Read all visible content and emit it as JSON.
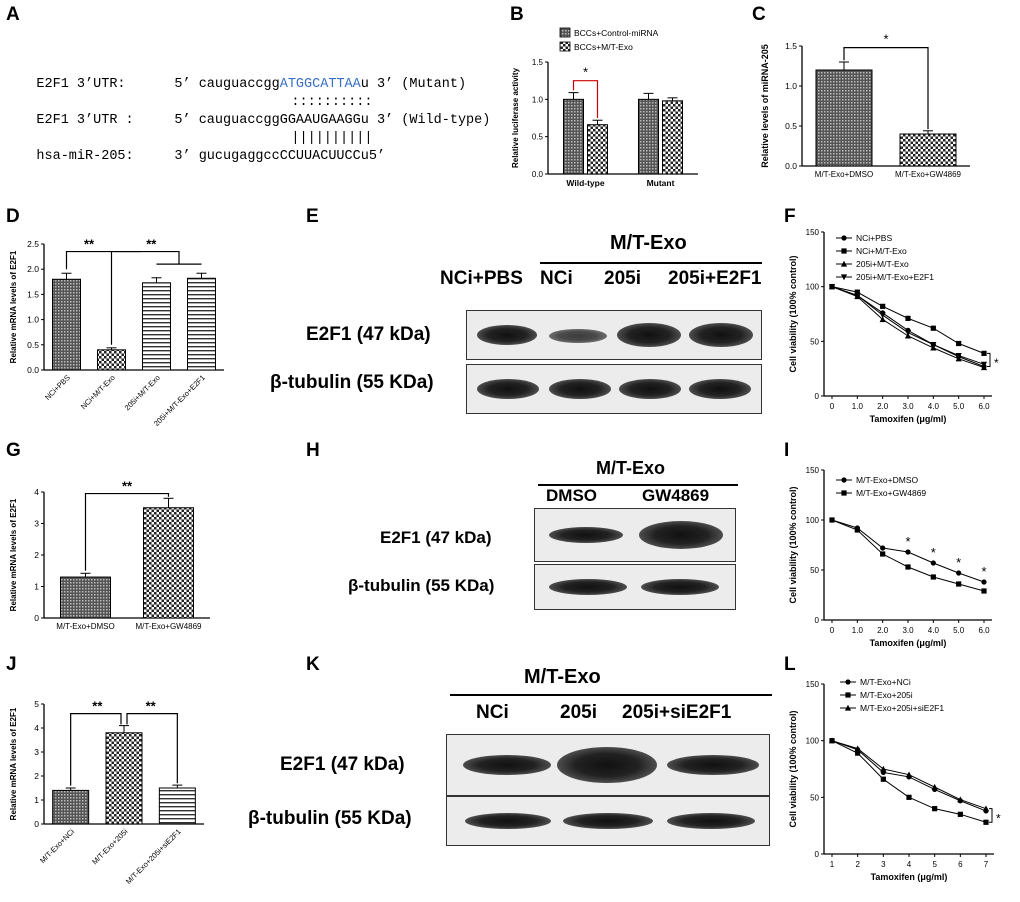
{
  "panel_labels": [
    "A",
    "B",
    "C",
    "D",
    "E",
    "F",
    "G",
    "H",
    "I",
    "J",
    "K",
    "L"
  ],
  "panel_a": {
    "rows": [
      {
        "name": "E2F1 3’UTR:",
        "pre": "5’ cauguaccgg",
        "hl": "ATGGCATTAA",
        "post": "u 3’ (Mutant)"
      },
      {
        "name": "",
        "pre": "",
        "hl": "",
        "post": "::::::::::"
      },
      {
        "name": "E2F1 3’UTR :",
        "pre": "5’ cauguaccggGGAAUGAAGGu 3’ (Wild-type)",
        "hl": "",
        "post": ""
      },
      {
        "name": "",
        "pre": "",
        "hl": "",
        "post": "||||||||||"
      },
      {
        "name": "hsa-miR-205:",
        "pre": "3’ gucugaggccCCUUACUUCCu5’",
        "hl": "",
        "post": ""
      }
    ]
  },
  "chart_data": [
    {
      "id": "B",
      "type": "bar",
      "categories": [
        "Wild-type",
        "Mutant"
      ],
      "series": [
        {
          "name": "BCCs+Control-miRNA",
          "values": [
            1.0,
            1.0
          ],
          "errors": [
            0.09,
            0.08
          ]
        },
        {
          "name": "BCCs+M/T-Exo",
          "values": [
            0.66,
            0.98
          ],
          "errors": [
            0.06,
            0.04
          ]
        }
      ],
      "ylabel": "Relative luciferase activity",
      "ylim": [
        0,
        1.5
      ],
      "yticks": [
        "0.0",
        "0.5",
        "1.0",
        "1.5"
      ],
      "significance": [
        "*"
      ]
    },
    {
      "id": "C",
      "type": "bar",
      "categories": [
        "M/T-Exo+DMSO",
        "M/T-Exo+GW4869"
      ],
      "values": [
        1.2,
        0.4
      ],
      "errors": [
        0.1,
        0.04
      ],
      "ylabel": "Relative levels of miRNA-205",
      "ylim": [
        0,
        1.5
      ],
      "yticks": [
        "0.0",
        "0.5",
        "1.0",
        "1.5"
      ],
      "significance": [
        "*"
      ]
    },
    {
      "id": "D",
      "type": "bar",
      "categories": [
        "NCi+PBS",
        "NCi+M/T-Exo",
        "205i+M/T-Exo",
        "205i+M/T-Exo+E2F1"
      ],
      "values": [
        1.8,
        0.4,
        1.73,
        1.82
      ],
      "errors": [
        0.12,
        0.04,
        0.1,
        0.1
      ],
      "ylabel": "Relative mRNA levels of E2F1",
      "ylim": [
        0,
        2.5
      ],
      "yticks": [
        "0.0",
        "0.5",
        "1.0",
        "1.5",
        "2.0",
        "2.5"
      ],
      "significance": [
        "**",
        "**"
      ]
    },
    {
      "id": "F",
      "type": "line",
      "x": [
        0,
        1,
        2,
        3,
        4,
        5,
        6
      ],
      "xticks": [
        "0",
        "1.0",
        "2.0",
        "3.0",
        "4.0",
        "5.0",
        "6.0"
      ],
      "series": [
        {
          "name": "NCi+PBS",
          "values": [
            100,
            92,
            76,
            60,
            47,
            36,
            27
          ]
        },
        {
          "name": "NCi+M/T-Exo",
          "values": [
            100,
            95,
            82,
            71,
            62,
            48,
            39
          ]
        },
        {
          "name": "205i+M/T-Exo",
          "values": [
            100,
            91,
            70,
            55,
            44,
            34,
            26
          ]
        },
        {
          "name": "205i+M/T-Exo+E2F1",
          "values": [
            100,
            92,
            74,
            58,
            47,
            37,
            29
          ]
        }
      ],
      "xlabel": "Tamoxifen (μg/ml)",
      "ylabel": "Cell viability (100% control)",
      "ylim": [
        0,
        150
      ],
      "yticks": [
        "0",
        "50",
        "100",
        "150"
      ],
      "significance": [
        "*"
      ]
    },
    {
      "id": "G",
      "type": "bar",
      "categories": [
        "M/T-Exo+DMSO",
        "M/T-Exo+GW4869"
      ],
      "values": [
        1.3,
        3.5
      ],
      "errors": [
        0.12,
        0.3
      ],
      "ylabel": "Relative mRNA levels of E2F1",
      "ylim": [
        0,
        4
      ],
      "yticks": [
        "0",
        "1",
        "2",
        "3",
        "4"
      ],
      "significance": [
        "**"
      ]
    },
    {
      "id": "I",
      "type": "line",
      "x": [
        0,
        1,
        2,
        3,
        4,
        5,
        6
      ],
      "xticks": [
        "0",
        "1.0",
        "2.0",
        "3.0",
        "4.0",
        "5.0",
        "6.0"
      ],
      "series": [
        {
          "name": "M/T-Exo+DMSO",
          "values": [
            100,
            92,
            72,
            68,
            57,
            47,
            38
          ]
        },
        {
          "name": "M/T-Exo+GW4869",
          "values": [
            100,
            90,
            66,
            53,
            43,
            36,
            29
          ]
        }
      ],
      "xlabel": "Tamoxifen (μg/ml)",
      "ylabel": "Cell viability (100% control)",
      "ylim": [
        0,
        150
      ],
      "yticks": [
        "0",
        "50",
        "100",
        "150"
      ],
      "significance": [
        "*",
        "*",
        "*",
        "*"
      ]
    },
    {
      "id": "J",
      "type": "bar",
      "categories": [
        "M/T-Exo+NCi",
        "M/T-Exo+205i",
        "M/T-Exo+205i+siE2F1"
      ],
      "values": [
        1.4,
        3.8,
        1.5
      ],
      "errors": [
        0.1,
        0.3,
        0.12
      ],
      "ylabel": "Relative mRNA levels of E2F1",
      "ylim": [
        0,
        5
      ],
      "yticks": [
        "0",
        "1",
        "2",
        "3",
        "4",
        "5"
      ],
      "significance": [
        "**",
        "**"
      ]
    },
    {
      "id": "L",
      "type": "line",
      "x": [
        1,
        2,
        3,
        4,
        5,
        6,
        7
      ],
      "xticks": [
        "1",
        "2",
        "3",
        "4",
        "5",
        "6",
        "7"
      ],
      "series": [
        {
          "name": "M/T-Exo+NCi",
          "values": [
            100,
            92,
            72,
            68,
            57,
            47,
            38
          ]
        },
        {
          "name": "M/T-Exo+205i",
          "values": [
            100,
            89,
            66,
            50,
            40,
            35,
            28
          ]
        },
        {
          "name": "M/T-Exo+205i+siE2F1",
          "values": [
            100,
            93,
            75,
            70,
            59,
            48,
            40
          ]
        }
      ],
      "xlabel": "Tamoxifen (μg/ml)",
      "ylabel": "Cell viability (100% control)",
      "ylim": [
        0,
        150
      ],
      "yticks": [
        "0",
        "50",
        "100",
        "150"
      ],
      "significance": [
        "*"
      ]
    }
  ],
  "blots": {
    "E": {
      "group": "M/T-Exo",
      "lanes": [
        "NCi+PBS",
        "NCi",
        "205i",
        "205i+E2F1"
      ],
      "rows": [
        "E2F1  (47 kDa)",
        "β-tubulin (55 KDa)"
      ]
    },
    "H": {
      "group": "M/T-Exo",
      "lanes": [
        "DMSO",
        "GW4869"
      ],
      "rows": [
        "E2F1  (47 kDa)",
        "β-tubulin (55 KDa)"
      ]
    },
    "K": {
      "group": "M/T-Exo",
      "lanes": [
        "NCi",
        "205i",
        "205i+siE2F1"
      ],
      "rows": [
        "E2F1  (47 kDa)",
        "β-tubulin (55 KDa)"
      ]
    }
  }
}
